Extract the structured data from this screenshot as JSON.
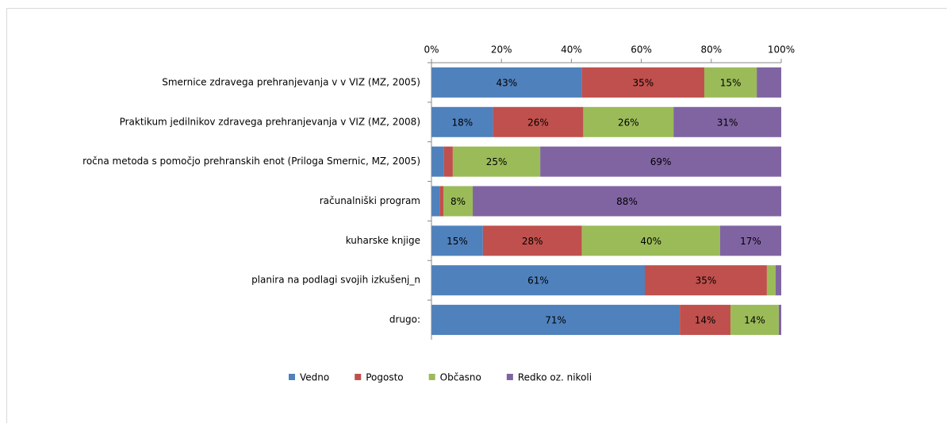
{
  "chart_data": {
    "type": "stacked-bar-horizontal",
    "categories": [
      "Smernice zdravega prehranjevanja v v VIZ (MZ, 2005)",
      "Praktikum jedilnikov zdravega prehranjevanja v VIZ (MZ, 2008)",
      "ročna metoda s pomočjo prehranskih enot (Priloga Smernic, MZ, 2005)",
      "računalniški program",
      "kuharske knjige",
      "planira na podlagi svojih izkušenj_n",
      "drugo:"
    ],
    "series": [
      {
        "name": "Vedno",
        "color": "#4f81bd",
        "values": [
          43,
          17.6,
          3.6,
          2.3,
          14.7,
          61,
          71
        ],
        "value_labels": [
          "43%",
          "18%",
          null,
          null,
          "15%",
          "61%",
          "71%"
        ]
      },
      {
        "name": "Pogosto",
        "color": "#c0504d",
        "values": [
          35,
          25.8,
          2.5,
          1.1,
          28.3,
          34.9,
          14.5
        ],
        "value_labels": [
          "35%",
          "26%",
          null,
          null,
          "28%",
          "35%",
          "14%"
        ]
      },
      {
        "name": "Občasno",
        "color": "#9bbb59",
        "values": [
          15,
          25.8,
          25,
          8.4,
          39.5,
          2.5,
          13.8
        ],
        "value_labels": [
          "15%",
          "26%",
          "25%",
          "8%",
          "40%",
          null,
          "14%"
        ]
      },
      {
        "name": "Redko oz. nikoli",
        "color": "#8064a2",
        "values": [
          7,
          30.8,
          68.9,
          88.2,
          17.5,
          1.6,
          0.7
        ],
        "value_labels": [
          null,
          "31%",
          "69%",
          "88%",
          "17%",
          null,
          null
        ]
      }
    ],
    "xlim": [
      0,
      100
    ],
    "xticks": [
      {
        "value": 0,
        "label": "0%"
      },
      {
        "value": 20,
        "label": "20%"
      },
      {
        "value": 40,
        "label": "40%"
      },
      {
        "value": 60,
        "label": "60%"
      },
      {
        "value": 80,
        "label": "80%"
      },
      {
        "value": 100,
        "label": "100%"
      }
    ],
    "legend": "bottom"
  }
}
